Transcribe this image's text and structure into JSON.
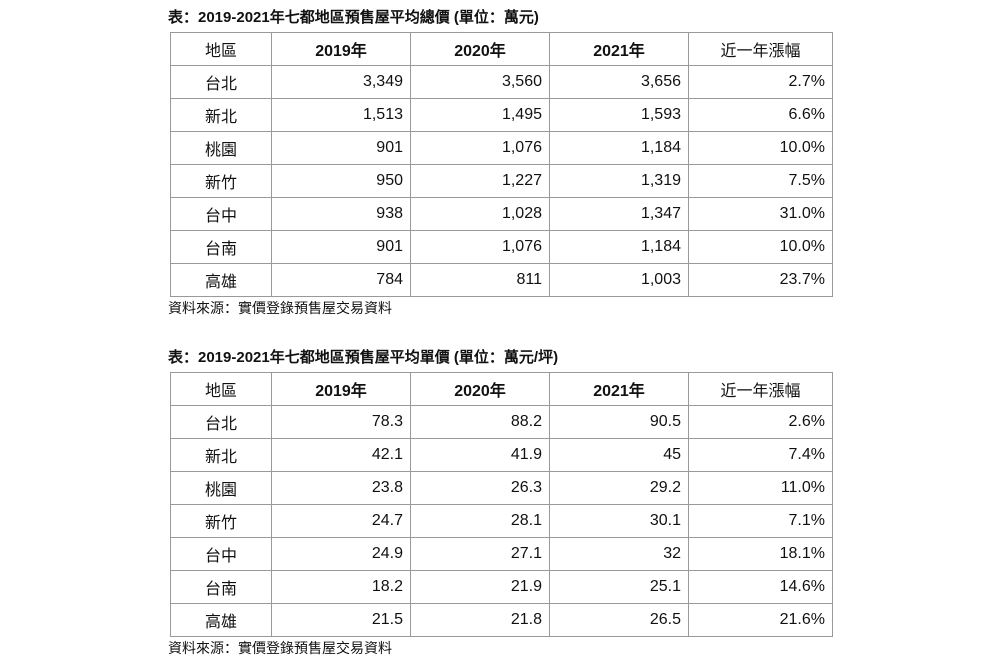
{
  "tables": [
    {
      "title": "表：2019-2021年七都地區預售屋平均總價 (單位：萬元)",
      "header": [
        "地區",
        "2019年",
        "2020年",
        "2021年",
        "近一年漲幅"
      ],
      "rows": [
        [
          "台北",
          "3,349",
          "3,560",
          "3,656",
          "2.7%"
        ],
        [
          "新北",
          "1,513",
          "1,495",
          "1,593",
          "6.6%"
        ],
        [
          "桃園",
          "901",
          "1,076",
          "1,184",
          "10.0%"
        ],
        [
          "新竹",
          "950",
          "1,227",
          "1,319",
          "7.5%"
        ],
        [
          "台中",
          "938",
          "1,028",
          "1,347",
          "31.0%"
        ],
        [
          "台南",
          "901",
          "1,076",
          "1,184",
          "10.0%"
        ],
        [
          "高雄",
          "784",
          "811",
          "1,003",
          "23.7%"
        ]
      ],
      "source": "資料來源：實價登錄預售屋交易資料"
    },
    {
      "title": "表：2019-2021年七都地區預售屋平均單價 (單位：萬元/坪)",
      "header": [
        "地區",
        "2019年",
        "2020年",
        "2021年",
        "近一年漲幅"
      ],
      "rows": [
        [
          "台北",
          "78.3",
          "88.2",
          "90.5",
          "2.6%"
        ],
        [
          "新北",
          "42.1",
          "41.9",
          "45",
          "7.4%"
        ],
        [
          "桃園",
          "23.8",
          "26.3",
          "29.2",
          "11.0%"
        ],
        [
          "新竹",
          "24.7",
          "28.1",
          "30.1",
          "7.1%"
        ],
        [
          "台中",
          "24.9",
          "27.1",
          "32",
          "18.1%"
        ],
        [
          "台南",
          "18.2",
          "21.9",
          "25.1",
          "14.6%"
        ],
        [
          "高雄",
          "21.5",
          "21.8",
          "26.5",
          "21.6%"
        ]
      ],
      "source": "資料來源：實價登錄預售屋交易資料"
    }
  ]
}
